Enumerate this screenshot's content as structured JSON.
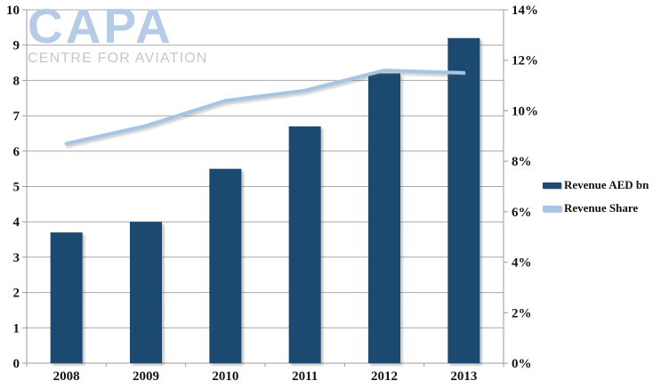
{
  "logo": {
    "title": "CAPA",
    "subtitle": "CENTRE FOR AVIATION",
    "title_color": "#b5cbe6",
    "subtitle_color": "#c7c7c7"
  },
  "chart_data": {
    "type": "bar",
    "title": "",
    "categories": [
      "2008",
      "2009",
      "2010",
      "2011",
      "2012",
      "2013"
    ],
    "series": [
      {
        "name": "Revenue AED bn",
        "type": "bar",
        "axis": "left",
        "color": "#1c4a70",
        "values": [
          3.7,
          4.0,
          5.5,
          6.7,
          8.2,
          9.2
        ]
      },
      {
        "name": "Revenue Share",
        "type": "line",
        "axis": "right",
        "color": "#a6c5e6",
        "unit": "%",
        "values": [
          8.7,
          9.4,
          10.4,
          10.8,
          11.6,
          11.5
        ]
      }
    ],
    "left_axis": {
      "min": 0,
      "max": 10,
      "step": 1,
      "suffix": ""
    },
    "right_axis": {
      "min": 0,
      "max": 14,
      "step": 2,
      "suffix": "%"
    },
    "grid": true,
    "legend_position": "right",
    "colors": {
      "grid": "#a8a8a8",
      "axis": "#9b9b9b",
      "text": "#141414",
      "background": "#ffffff"
    }
  }
}
